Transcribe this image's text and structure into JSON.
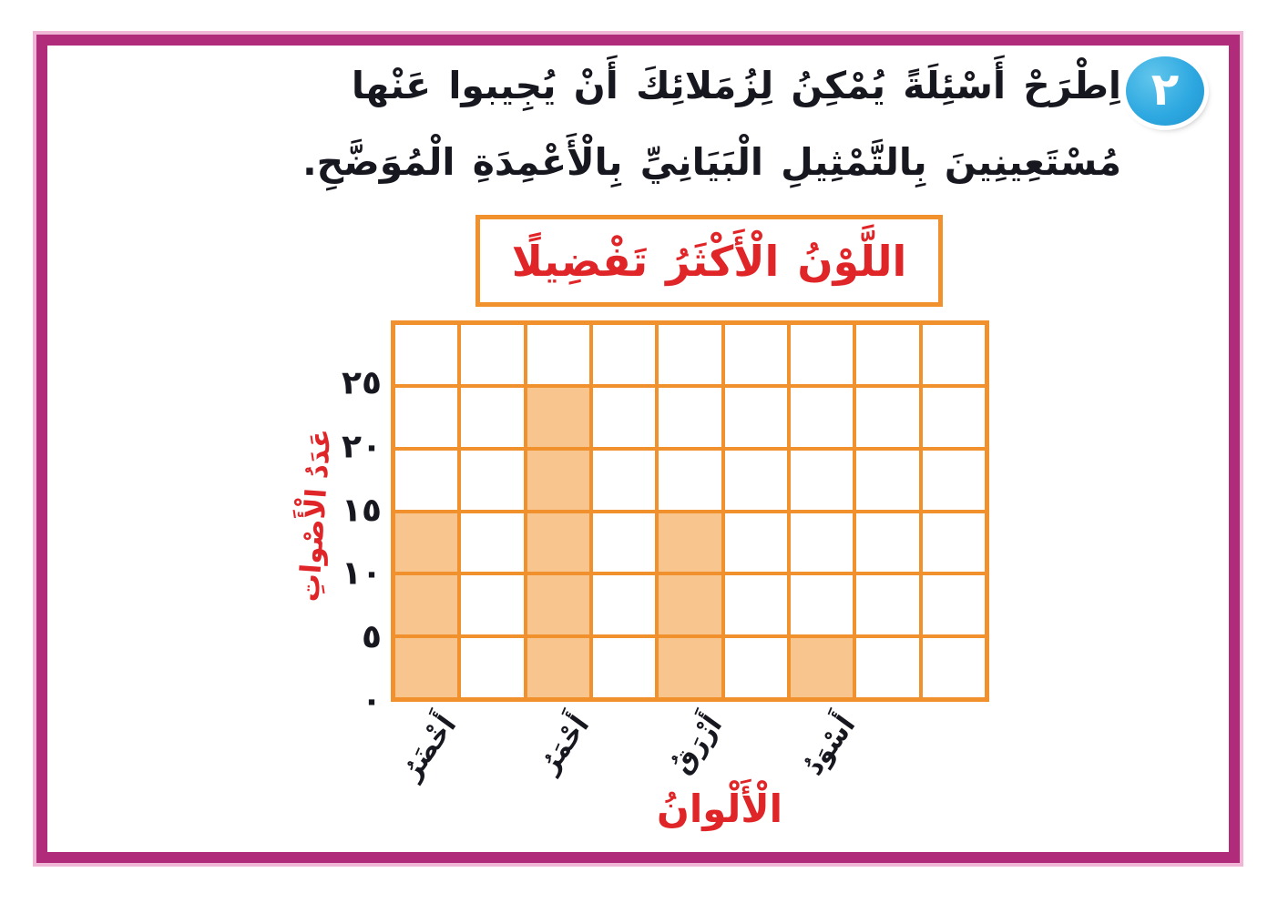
{
  "page": {
    "badge_number": "٢",
    "instruction_line1": "اِطْرَحْ أَسْئِلَةً يُمْكِنُ لِزُمَلائِكَ أَنْ يُجِيبوا عَنْها",
    "instruction_line2": "مُسْتَعِينِينَ بِالتَّمْثِيلِ الْبَيَانِيِّ بِالْأَعْمِدَةِ الْمُوَضَّحِ."
  },
  "colors": {
    "frame": "#B12B7B",
    "frame_outer": "#EFB6D6",
    "grid_line": "#F0912D",
    "cell_fill": "#F9C58E",
    "accent_red": "#E02528",
    "badge_blue": "#2FA9E1",
    "text_dark": "#17171F"
  },
  "chart_data": {
    "type": "bar",
    "title": "اللَّوْنُ الْأَكْثَرُ تَفْضِيلًا",
    "xlabel": "الْأَلْوانُ",
    "ylabel": "عَدَدُ الْأَصْواتِ",
    "categories": [
      "أَخْضَرُ",
      "أَحْمَرُ",
      "أَزْرَقُ",
      "أَسْوَدُ"
    ],
    "values": [
      15,
      25,
      15,
      5
    ],
    "unit_per_cell": 5,
    "grid_rows": 6,
    "grid_columns": 9,
    "bar_column_indices": [
      0,
      2,
      4,
      6
    ],
    "y_ticks": [
      "٢٥",
      "٢٠",
      "١٥",
      "١٠",
      "٥",
      "٠"
    ],
    "y_tick_values": [
      25,
      20,
      15,
      10,
      5,
      0
    ],
    "ylim": [
      0,
      30
    ],
    "grid": "on",
    "legend_position": "none"
  }
}
